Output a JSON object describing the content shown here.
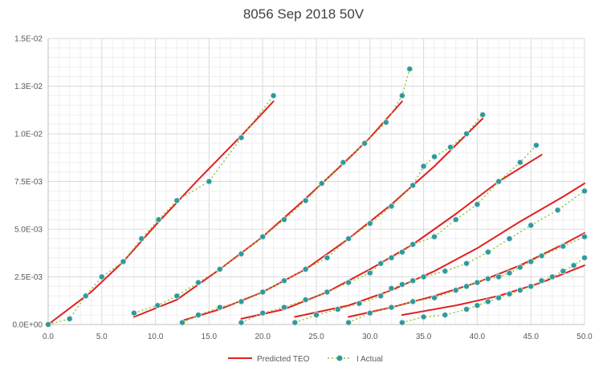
{
  "chart_data": {
    "type": "line",
    "title": "8056 Sep 2018 50V",
    "xlabel": "",
    "ylabel": "",
    "xlim": [
      0,
      50
    ],
    "ylim": [
      0,
      0.015
    ],
    "x_tick_labels": [
      "0.0",
      "5.0",
      "10.0",
      "15.0",
      "20.0",
      "25.0",
      "30.0",
      "35.0",
      "40.0",
      "45.0",
      "50.0"
    ],
    "y_tick_labels": [
      "0.0E+00",
      "2.5E-03",
      "5.0E-03",
      "7.5E-03",
      "1.0E-02",
      "1.3E-02",
      "1.5E-02"
    ],
    "grid": true,
    "legend_position": "bottom",
    "colors": {
      "predicted": "#e02020",
      "actual_marker": "#2e9a9a",
      "actual_line": "#8cc63f",
      "grid": "#d9d9d9",
      "axis": "#bfbfbf"
    },
    "legend": [
      {
        "label": "Predicted TEO",
        "style": "line"
      },
      {
        "label": "I Actual",
        "style": "marker-dotted"
      }
    ],
    "series": [
      {
        "name": "Predicted TEO",
        "curves": [
          [
            [
              0,
              0
            ],
            [
              4,
              0.0017
            ],
            [
              7,
              0.0033
            ],
            [
              10,
              0.0052
            ],
            [
              14,
              0.0076
            ],
            [
              18,
              0.0099
            ],
            [
              21,
              0.0117
            ]
          ],
          [
            [
              8,
              0.0004
            ],
            [
              12,
              0.0013
            ],
            [
              16,
              0.0029
            ],
            [
              20,
              0.0046
            ],
            [
              24,
              0.0066
            ],
            [
              28,
              0.0087
            ],
            [
              30,
              0.0098
            ],
            [
              33,
              0.0117
            ]
          ],
          [
            [
              12.5,
              0.0002
            ],
            [
              16,
              0.0008
            ],
            [
              20,
              0.0017
            ],
            [
              24,
              0.0029
            ],
            [
              28,
              0.0045
            ],
            [
              32,
              0.0063
            ],
            [
              36,
              0.0083
            ],
            [
              40.5,
              0.0108
            ]
          ],
          [
            [
              18,
              0.0003
            ],
            [
              22,
              0.0008
            ],
            [
              26,
              0.0017
            ],
            [
              30,
              0.0029
            ],
            [
              34,
              0.0042
            ],
            [
              38,
              0.0058
            ],
            [
              42,
              0.0075
            ],
            [
              46,
              0.0089
            ]
          ],
          [
            [
              23,
              0.0004
            ],
            [
              28,
              0.001
            ],
            [
              32,
              0.0018
            ],
            [
              36,
              0.0028
            ],
            [
              40,
              0.004
            ],
            [
              44,
              0.0054
            ],
            [
              48,
              0.0067
            ],
            [
              50,
              0.0074
            ]
          ],
          [
            [
              28,
              0.0004
            ],
            [
              32,
              0.0009
            ],
            [
              36,
              0.0015
            ],
            [
              40,
              0.0022
            ],
            [
              44,
              0.0031
            ],
            [
              48,
              0.0042
            ],
            [
              50,
              0.0048
            ]
          ],
          [
            [
              33,
              0.0005
            ],
            [
              38,
              0.001
            ],
            [
              42,
              0.0015
            ],
            [
              46,
              0.0022
            ],
            [
              50,
              0.0031
            ]
          ]
        ]
      },
      {
        "name": "I Actual",
        "curves": [
          [
            [
              0,
              0
            ],
            [
              2,
              0.0003
            ],
            [
              3.5,
              0.0015
            ],
            [
              5,
              0.0025
            ],
            [
              7,
              0.0033
            ],
            [
              8.7,
              0.0045
            ],
            [
              10.3,
              0.0055
            ],
            [
              12,
              0.0065
            ],
            [
              15,
              0.0075
            ],
            [
              18,
              0.0098
            ],
            [
              21,
              0.012
            ]
          ],
          [
            [
              8,
              0.0006
            ],
            [
              10.2,
              0.001
            ],
            [
              12,
              0.0015
            ],
            [
              14,
              0.0022
            ],
            [
              16,
              0.0029
            ],
            [
              18,
              0.0037
            ],
            [
              20,
              0.0046
            ],
            [
              22,
              0.0055
            ],
            [
              24,
              0.0065
            ],
            [
              25.5,
              0.0074
            ],
            [
              27.5,
              0.0085
            ],
            [
              29.5,
              0.0095
            ],
            [
              31.5,
              0.0106
            ],
            [
              33,
              0.012
            ],
            [
              33.7,
              0.0134
            ]
          ],
          [
            [
              12.5,
              0.0001
            ],
            [
              14,
              0.0005
            ],
            [
              16,
              0.0009
            ],
            [
              18,
              0.0012
            ],
            [
              20,
              0.0017
            ],
            [
              22,
              0.0023
            ],
            [
              24,
              0.0029
            ],
            [
              26,
              0.0035
            ],
            [
              28,
              0.0045
            ],
            [
              30,
              0.0053
            ],
            [
              32,
              0.0062
            ],
            [
              34,
              0.0073
            ],
            [
              35,
              0.0083
            ],
            [
              36,
              0.0088
            ],
            [
              37.5,
              0.0093
            ],
            [
              39,
              0.01
            ],
            [
              40.5,
              0.011
            ]
          ],
          [
            [
              18,
              0.0001
            ],
            [
              20,
              0.0006
            ],
            [
              22,
              0.0009
            ],
            [
              24,
              0.0013
            ],
            [
              26,
              0.0017
            ],
            [
              28,
              0.0022
            ],
            [
              30,
              0.0027
            ],
            [
              31,
              0.0032
            ],
            [
              32,
              0.0035
            ],
            [
              33,
              0.0038
            ],
            [
              34,
              0.0042
            ],
            [
              36,
              0.0046
            ],
            [
              38,
              0.0055
            ],
            [
              40,
              0.0063
            ],
            [
              42,
              0.0075
            ],
            [
              44,
              0.0085
            ],
            [
              45.5,
              0.0094
            ]
          ],
          [
            [
              23,
              0.0001
            ],
            [
              25,
              0.0005
            ],
            [
              27,
              0.0008
            ],
            [
              29,
              0.0011
            ],
            [
              31,
              0.0015
            ],
            [
              32,
              0.0019
            ],
            [
              33,
              0.0021
            ],
            [
              34,
              0.0023
            ],
            [
              35,
              0.0025
            ],
            [
              37,
              0.0028
            ],
            [
              39,
              0.0032
            ],
            [
              41,
              0.0038
            ],
            [
              43,
              0.0045
            ],
            [
              45,
              0.0052
            ],
            [
              47.5,
              0.006
            ],
            [
              50,
              0.007
            ]
          ],
          [
            [
              28,
              0.0001
            ],
            [
              30,
              0.0006
            ],
            [
              32,
              0.0009
            ],
            [
              34,
              0.0012
            ],
            [
              36,
              0.0014
            ],
            [
              38,
              0.0018
            ],
            [
              39,
              0.002
            ],
            [
              40,
              0.0022
            ],
            [
              41,
              0.0024
            ],
            [
              42,
              0.0025
            ],
            [
              43,
              0.0027
            ],
            [
              44,
              0.003
            ],
            [
              45,
              0.0033
            ],
            [
              46,
              0.0036
            ],
            [
              48,
              0.0041
            ],
            [
              50,
              0.0046
            ]
          ],
          [
            [
              33,
              0.0001
            ],
            [
              35,
              0.0004
            ],
            [
              37,
              0.0005
            ],
            [
              39,
              0.0008
            ],
            [
              40,
              0.001
            ],
            [
              41,
              0.0012
            ],
            [
              42,
              0.0014
            ],
            [
              43,
              0.0016
            ],
            [
              44,
              0.0018
            ],
            [
              45,
              0.002
            ],
            [
              46,
              0.0023
            ],
            [
              47,
              0.0025
            ],
            [
              48,
              0.0028
            ],
            [
              49,
              0.0031
            ],
            [
              50,
              0.0035
            ]
          ]
        ]
      }
    ]
  }
}
